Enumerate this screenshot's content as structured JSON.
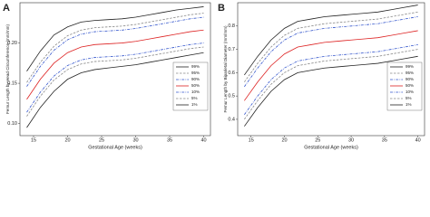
{
  "chart_data": [
    {
      "type": "line",
      "panel_label": "A",
      "x_label": "Gestational Age (weeks)",
      "y_label": "Femur Length by Head Circumference (mm/mm)",
      "x": [
        14,
        16,
        18,
        20,
        22,
        24,
        26,
        28,
        30,
        32,
        34,
        36,
        38,
        40
      ],
      "xlim": [
        13,
        41
      ],
      "xticks": [
        15,
        20,
        25,
        30,
        35,
        40
      ],
      "ylim": [
        0.085,
        0.25
      ],
      "yticks": [
        {
          "value": 0.1,
          "label": "0.10"
        },
        {
          "value": 0.15,
          "label": "0.15"
        },
        {
          "value": 0.2,
          "label": "0.20"
        }
      ],
      "legend": "lower right",
      "series": [
        {
          "name": "99%",
          "color": "#222222",
          "linestyle": "solid",
          "values": [
            0.165,
            0.19,
            0.21,
            0.22,
            0.226,
            0.228,
            0.229,
            0.23,
            0.232,
            0.235,
            0.238,
            0.241,
            0.243,
            0.245
          ]
        },
        {
          "name": "95%",
          "color": "#888888",
          "linestyle": "dashed",
          "values": [
            0.151,
            0.176,
            0.196,
            0.209,
            0.216,
            0.219,
            0.22,
            0.221,
            0.223,
            0.226,
            0.229,
            0.232,
            0.235,
            0.237
          ]
        },
        {
          "name": "90%",
          "color": "#3355cc",
          "linestyle": "dashdot",
          "values": [
            0.146,
            0.171,
            0.191,
            0.204,
            0.211,
            0.214,
            0.215,
            0.216,
            0.218,
            0.221,
            0.224,
            0.227,
            0.23,
            0.232
          ]
        },
        {
          "name": "50%",
          "color": "#dd2222",
          "linestyle": "solid",
          "values": [
            0.13,
            0.155,
            0.175,
            0.188,
            0.195,
            0.198,
            0.199,
            0.2,
            0.202,
            0.205,
            0.208,
            0.211,
            0.214,
            0.216
          ]
        },
        {
          "name": "10%",
          "color": "#3355cc",
          "linestyle": "dashdot",
          "values": [
            0.114,
            0.139,
            0.159,
            0.172,
            0.179,
            0.182,
            0.183,
            0.184,
            0.186,
            0.189,
            0.192,
            0.195,
            0.198,
            0.2
          ]
        },
        {
          "name": "5%",
          "color": "#888888",
          "linestyle": "dashed",
          "values": [
            0.109,
            0.134,
            0.154,
            0.167,
            0.174,
            0.177,
            0.178,
            0.179,
            0.181,
            0.184,
            0.187,
            0.19,
            0.193,
            0.195
          ]
        },
        {
          "name": "1%",
          "color": "#222222",
          "linestyle": "solid",
          "values": [
            0.095,
            0.12,
            0.14,
            0.155,
            0.163,
            0.167,
            0.169,
            0.171,
            0.173,
            0.176,
            0.179,
            0.182,
            0.185,
            0.188
          ]
        }
      ]
    },
    {
      "type": "line",
      "panel_label": "B",
      "x_label": "Gestational Age (weeks)",
      "y_label": "Femur Length by Biparietal Diameter (mm/mm)",
      "x": [
        14,
        16,
        18,
        20,
        22,
        24,
        26,
        28,
        30,
        32,
        34,
        36,
        38,
        40
      ],
      "xlim": [
        13,
        41
      ],
      "xticks": [
        15,
        20,
        25,
        30,
        35,
        40
      ],
      "ylim": [
        0.33,
        0.9
      ],
      "yticks": [
        0.4,
        0.5,
        0.6,
        0.7,
        0.8
      ],
      "legend": "lower right",
      "series": [
        {
          "name": "99%",
          "color": "#222222",
          "linestyle": "solid",
          "values": [
            0.59,
            0.67,
            0.74,
            0.79,
            0.82,
            0.83,
            0.84,
            0.845,
            0.85,
            0.855,
            0.86,
            0.87,
            0.88,
            0.89
          ]
        },
        {
          "name": "95%",
          "color": "#888888",
          "linestyle": "dashed",
          "values": [
            0.56,
            0.64,
            0.71,
            0.76,
            0.79,
            0.8,
            0.81,
            0.815,
            0.82,
            0.825,
            0.83,
            0.84,
            0.85,
            0.86
          ]
        },
        {
          "name": "90%",
          "color": "#3355cc",
          "linestyle": "dashdot",
          "values": [
            0.54,
            0.62,
            0.69,
            0.74,
            0.77,
            0.78,
            0.79,
            0.795,
            0.8,
            0.805,
            0.81,
            0.82,
            0.83,
            0.84
          ]
        },
        {
          "name": "50%",
          "color": "#dd2222",
          "linestyle": "solid",
          "values": [
            0.48,
            0.56,
            0.63,
            0.68,
            0.71,
            0.72,
            0.73,
            0.735,
            0.74,
            0.745,
            0.75,
            0.76,
            0.77,
            0.78
          ]
        },
        {
          "name": "10%",
          "color": "#3355cc",
          "linestyle": "dashdot",
          "values": [
            0.42,
            0.5,
            0.57,
            0.62,
            0.65,
            0.66,
            0.67,
            0.675,
            0.68,
            0.685,
            0.69,
            0.7,
            0.71,
            0.72
          ]
        },
        {
          "name": "5%",
          "color": "#888888",
          "linestyle": "dashed",
          "values": [
            0.4,
            0.48,
            0.55,
            0.6,
            0.63,
            0.64,
            0.65,
            0.655,
            0.66,
            0.665,
            0.67,
            0.68,
            0.69,
            0.7
          ]
        },
        {
          "name": "1%",
          "color": "#222222",
          "linestyle": "solid",
          "values": [
            0.37,
            0.45,
            0.52,
            0.57,
            0.6,
            0.61,
            0.62,
            0.625,
            0.63,
            0.635,
            0.64,
            0.65,
            0.66,
            0.67
          ]
        }
      ]
    }
  ]
}
